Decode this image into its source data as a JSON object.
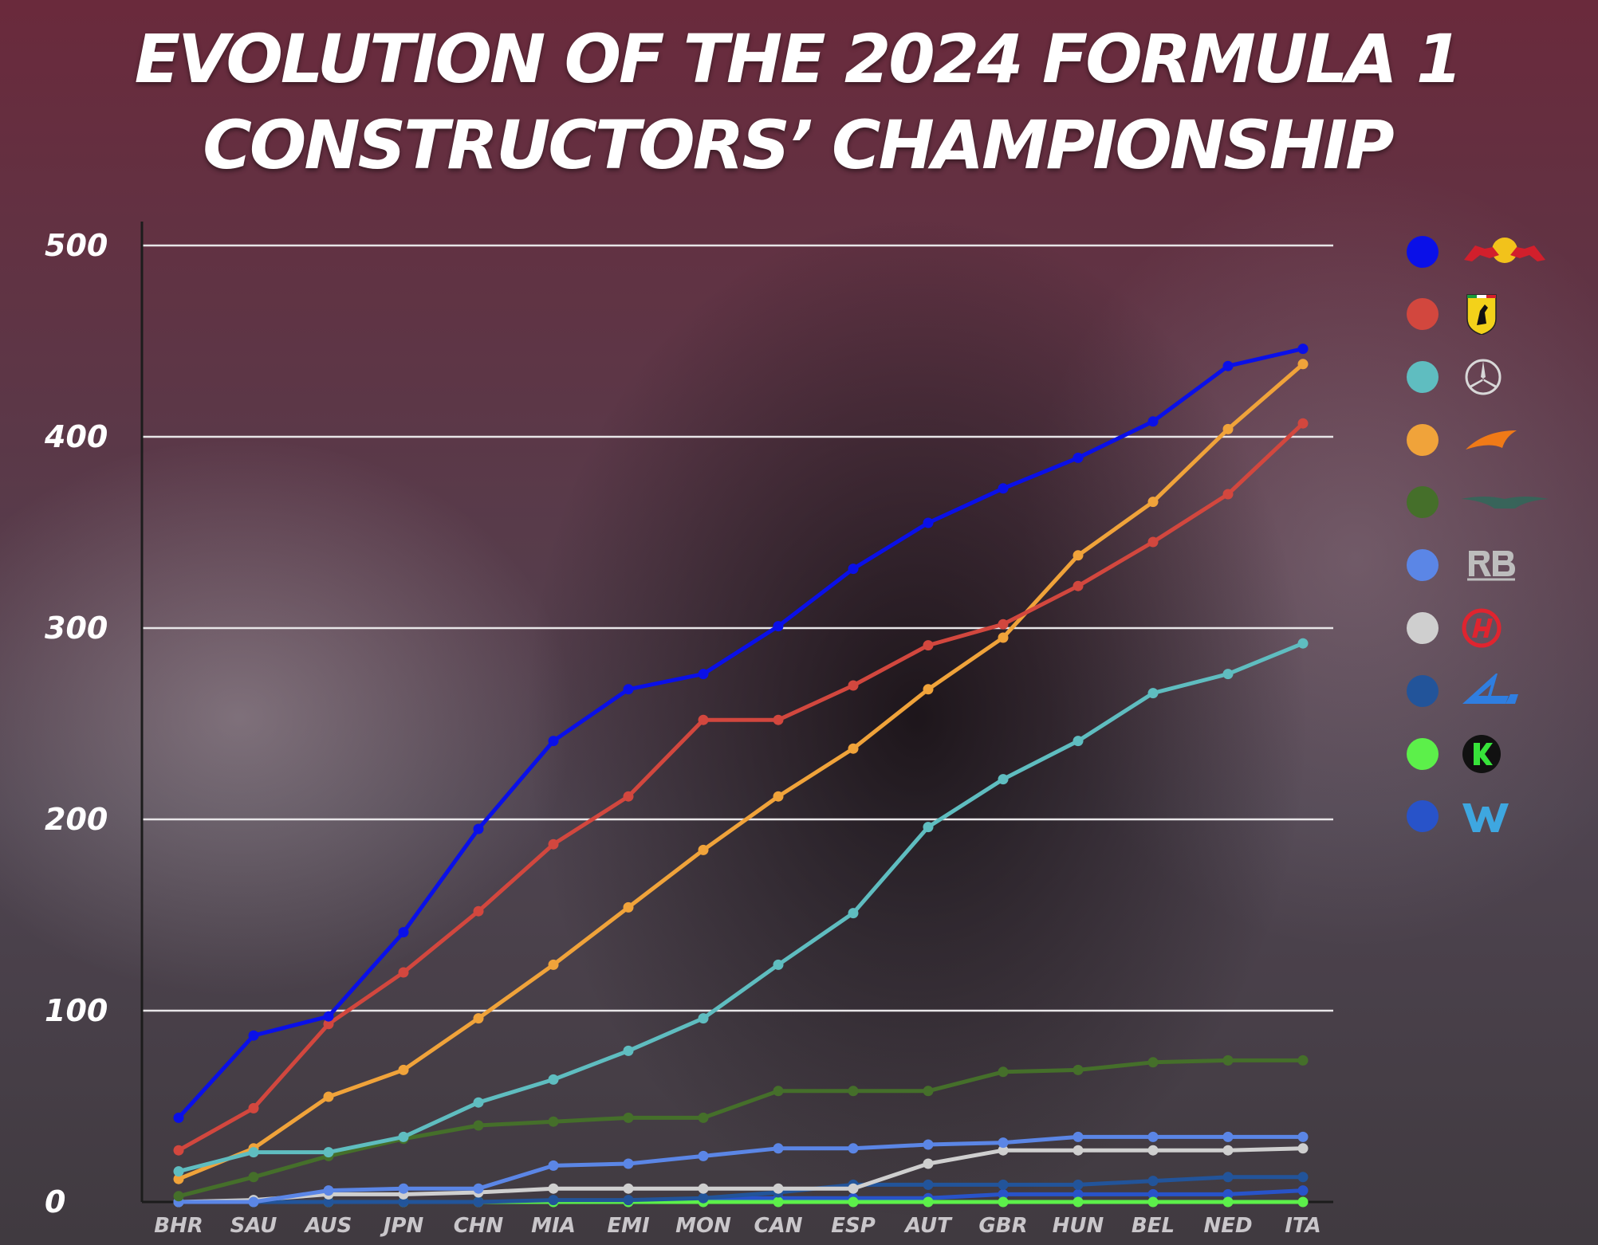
{
  "title_line1": "EVOLUTION OF THE 2024 FORMULA 1",
  "title_line2": "CONSTRUCTORS’ CHAMPIONSHIP",
  "legend": [
    {
      "color": "#0a10e8",
      "icon": "red-bull-logo-icon"
    },
    {
      "color": "#d2473e",
      "icon": "ferrari-logo-icon"
    },
    {
      "color": "#5fbdc0",
      "icon": "mercedes-logo-icon"
    },
    {
      "color": "#f0a33a",
      "icon": "mclaren-logo-icon"
    },
    {
      "color": "#456f2a",
      "icon": "aston-martin-logo-icon"
    },
    {
      "color": "#5b86e6",
      "icon": "rb-logo-icon"
    },
    {
      "color": "#cfcfcf",
      "icon": "haas-logo-icon"
    },
    {
      "color": "#22549a",
      "icon": "alpine-logo-icon"
    },
    {
      "color": "#5cf04a",
      "icon": "kick-sauber-logo-icon"
    },
    {
      "color": "#2853c9",
      "icon": "williams-logo-icon"
    }
  ],
  "chart_data": {
    "type": "line",
    "title": "EVOLUTION OF THE 2024 FORMULA 1 CONSTRUCTORS’ CHAMPIONSHIP",
    "xlabel": "",
    "ylabel": "",
    "ylim": [
      0,
      500
    ],
    "yticks": [
      0,
      100,
      200,
      300,
      400,
      500
    ],
    "grid": true,
    "legend_position": "right",
    "categories": [
      "BHR",
      "SAU",
      "AUS",
      "JPN",
      "CHN",
      "MIA",
      "EMI",
      "MON",
      "CAN",
      "ESP",
      "AUT",
      "GBR",
      "HUN",
      "BEL",
      "NED",
      "ITA"
    ],
    "series": [
      {
        "color": "#0a10e8",
        "values": [
          44,
          87,
          97,
          141,
          195,
          241,
          268,
          276,
          301,
          331,
          355,
          373,
          389,
          408,
          437,
          446
        ]
      },
      {
        "color": "#d2473e",
        "values": [
          27,
          49,
          93,
          120,
          152,
          187,
          212,
          252,
          252,
          270,
          291,
          302,
          322,
          345,
          370,
          407
        ]
      },
      {
        "color": "#5fbdc0",
        "values": [
          16,
          26,
          26,
          34,
          52,
          64,
          79,
          96,
          124,
          151,
          196,
          221,
          241,
          266,
          276,
          292
        ]
      },
      {
        "color": "#f0a33a",
        "values": [
          12,
          28,
          55,
          69,
          96,
          124,
          154,
          184,
          212,
          237,
          268,
          295,
          338,
          366,
          404,
          438
        ]
      },
      {
        "color": "#456f2a",
        "values": [
          3,
          13,
          24,
          33,
          40,
          42,
          44,
          44,
          58,
          58,
          58,
          68,
          69,
          73,
          74,
          74
        ]
      },
      {
        "color": "#5b86e6",
        "values": [
          0,
          0,
          6,
          7,
          7,
          19,
          20,
          24,
          28,
          28,
          30,
          31,
          34,
          34,
          34,
          34
        ]
      },
      {
        "color": "#cfcfcf",
        "values": [
          0,
          1,
          4,
          4,
          5,
          7,
          7,
          7,
          7,
          7,
          20,
          27,
          27,
          27,
          27,
          28
        ]
      },
      {
        "color": "#22549a",
        "values": [
          0,
          0,
          0,
          0,
          0,
          1,
          1,
          2,
          5,
          9,
          9,
          9,
          9,
          11,
          13,
          13
        ]
      },
      {
        "color": "#5cf04a",
        "values": [
          0,
          0,
          0,
          0,
          0,
          0,
          0,
          0,
          0,
          0,
          0,
          0,
          0,
          0,
          0,
          0
        ]
      },
      {
        "color": "#2853c9",
        "values": [
          0,
          0,
          0,
          0,
          0,
          0,
          0,
          2,
          2,
          2,
          2,
          4,
          4,
          4,
          4,
          6
        ]
      }
    ]
  }
}
